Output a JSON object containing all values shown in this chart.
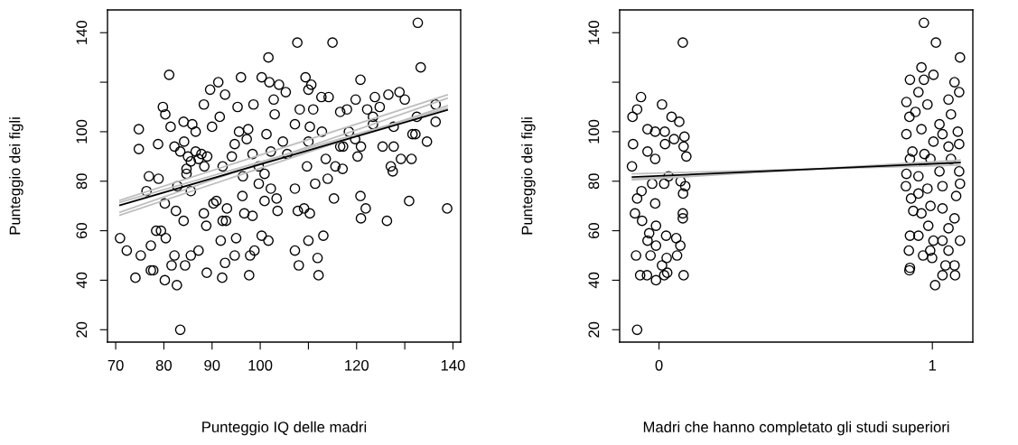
{
  "chart_data": [
    {
      "type": "scatter",
      "xlabel": "Punteggio IQ delle madri",
      "ylabel": "Punteggio dei figli",
      "xlim": [
        68.3,
        141.6
      ],
      "ylim": [
        15,
        149.2
      ],
      "xticks": [
        70,
        80,
        90,
        100,
        {
          "value": 110,
          "label": null
        },
        120,
        {
          "value": 130,
          "label": null
        },
        140
      ],
      "yticks": [
        20,
        40,
        60,
        80,
        100,
        {
          "value": 120,
          "label": null
        },
        140
      ],
      "grid": false,
      "legend": false,
      "series": [
        {
          "marker": "circle",
          "color": "#000000",
          "x": [
            70.9,
            72.3,
            74.1,
            74.8,
            74.8,
            75.2,
            76.4,
            76.9,
            77.3,
            77.3,
            78.8,
            78.9,
            79.8,
            80.3,
            81.1,
            81.4,
            80.2,
            79.4,
            80.4,
            80.2,
            82.7,
            83.4,
            82.2,
            82.5,
            84.1,
            85.9,
            84.2,
            84.7,
            85.6,
            86.6,
            87.2,
            88.9,
            88.3,
            88.8,
            88.3,
            89.6,
            91.3,
            90,
            87.8,
            90.3,
            92.1,
            91.8,
            92.7,
            92.7,
            93.1,
            92.9,
            91.6,
            94.1,
            96,
            94.7,
            95,
            95.3,
            95.6,
            96.4,
            96.3,
            96.7,
            97.7,
            97.9,
            98.8,
            98.6,
            97.5,
            98.4,
            99.7,
            100.3,
            101.9,
            101.7,
            100.3,
            101.7,
            100.9,
            102.2,
            101.3,
            103.4,
            103.6,
            103.9,
            102.8,
            103,
            105.3,
            104.7,
            105.6,
            107.2,
            108,
            107.7,
            107.8,
            107.2,
            108.2,
            107.2,
            109.4,
            110.6,
            110,
            110,
            109.7,
            109.1,
            110.3,
            110,
            111.9,
            112.1,
            113.1,
            111.4,
            111,
            115,
            112.7,
            114.2,
            113.6,
            114,
            115.3,
            115.6,
            117.1,
            116.6,
            118,
            116.6,
            118.4,
            119.8,
            120.8,
            120.8,
            120.9,
            121.9,
            120.2,
            120.9,
            122.2,
            123.8,
            123.4,
            124.8,
            125.4,
            126.3,
            126.6,
            127.1,
            127.5,
            127.7,
            128.9,
            129.2,
            130,
            127.7,
            130.9,
            131.4,
            131.6,
            132.2,
            132.7,
            133.3,
            134.6,
            136.4,
            136.4,
            138.8,
            132.5,
            82.2,
            83.4,
            85,
            86.6,
            87.2,
            88.4,
            89,
            84.7,
            82.8,
            85.6,
            90.9,
            92.2,
            94.7,
            97.2,
            99.7,
            102.2,
            100.9,
            84.1,
            78.4,
            77.8,
            81.6,
            84.4,
            85.6,
            92.2,
            98.4,
            110.3,
            112.8,
            119.7,
            123.4,
            117.2
          ],
          "values": [
            57,
            52,
            41,
            101,
            93,
            50,
            76,
            82,
            54,
            44,
            95,
            81,
            110,
            107,
            123,
            102,
            71,
            60,
            57,
            40,
            38,
            20,
            50,
            68,
            104,
            103,
            96,
            85,
            88,
            100,
            52,
            43,
            67,
            62,
            111,
            117,
            120,
            102,
            91,
            71,
            41,
            56,
            47,
            115,
            69,
            64,
            106,
            90,
            122,
            50,
            57,
            110,
            100,
            82,
            74,
            67,
            42,
            50,
            52,
            111,
            101,
            91,
            79,
            122,
            120,
            130,
            58,
            56,
            72,
            77,
            99,
            73,
            68,
            119,
            113,
            107,
            116,
            96,
            91,
            52,
            46,
            136,
            68,
            77,
            109,
            103,
            122,
            119,
            117,
            96,
            86,
            69,
            67,
            56,
            49,
            42,
            58,
            79,
            109,
            136,
            114,
            114,
            89,
            81,
            73,
            86,
            85,
            108,
            109,
            94,
            100,
            113,
            121,
            74,
            65,
            69,
            90,
            94,
            109,
            114,
            106,
            110,
            94,
            64,
            115,
            86,
            84,
            94,
            116,
            89,
            113,
            102,
            72,
            89,
            99,
            99,
            144,
            126,
            96,
            111,
            104,
            69,
            106,
            94,
            92,
            90,
            92,
            89,
            86,
            90,
            83,
            78,
            76,
            72,
            86,
            95,
            97,
            86,
            92,
            83,
            64,
            60,
            44,
            46,
            46,
            50,
            64,
            66,
            102,
            100,
            97,
            103,
            94
          ]
        },
        {
          "type": "line",
          "color": "#bebebe",
          "x": [
            70.9,
            138.8
          ],
          "values": [
            72.3,
            114.9
          ]
        },
        {
          "type": "line",
          "color": "#bebebe",
          "x": [
            70.9,
            138.8
          ],
          "values": [
            66.3,
            110.5
          ]
        },
        {
          "type": "line",
          "color": "#bebebe",
          "x": [
            70.9,
            138.8
          ],
          "values": [
            67.5,
            113.5
          ]
        },
        {
          "type": "line",
          "color": "#bebebe",
          "x": [
            70.9,
            138.8
          ],
          "values": [
            71.5,
            109.5
          ]
        },
        {
          "type": "line",
          "color": "#000000",
          "x": [
            70.9,
            138.8
          ],
          "values": [
            70.3,
            108.8
          ]
        }
      ]
    },
    {
      "type": "scatter",
      "xlabel": "Madri che hanno completato gli studi superiori",
      "ylabel": "Punteggio dei figli",
      "xlim": [
        -0.144,
        1.148
      ],
      "ylim": [
        15,
        149.2
      ],
      "xticks": [
        0,
        1
      ],
      "yticks": [
        20,
        40,
        60,
        80,
        100,
        {
          "value": 120,
          "label": null
        },
        140
      ],
      "grid": false,
      "legend": false,
      "series": [
        {
          "marker": "circle",
          "color": "#000000",
          "x": [
            -0.08,
            0.087,
            -0.066,
            0.011,
            -0.097,
            -0.08,
            -0.095,
            -0.099,
            -0.042,
            -0.014,
            -0.042,
            -0.014,
            0.021,
            0.046,
            0.074,
            0.022,
            0.055,
            0.093,
            0.1,
            0.09,
            -0.08,
            -0.064,
            -0.014,
            -0.025,
            0.019,
            0.035,
            0.079,
            0.088,
            0.096,
            0.087,
            0.087,
            -0.088,
            -0.062,
            -0.011,
            -0.036,
            -0.042,
            -0.011,
            0.026,
            0.063,
            0.078,
            0.066,
            0.028,
            -0.084,
            -0.031,
            -0.069,
            -0.044,
            -0.011,
            0.019,
            0.03,
            0.011,
            0.09,
            0.969,
            1.013,
            1.101,
            0.96,
            0.918,
            0.969,
            1.004,
            1.081,
            1.098,
            0.905,
            0.949,
            0.982,
            1.059,
            0.916,
            0.96,
            1.026,
            1.093,
            0.905,
            1.004,
            1.059,
            0.927,
            1.098,
            0.971,
            0.905,
            0.949,
            1.026,
            1.098,
            0.903,
            0.982,
            1.087,
            0.922,
            0.993,
            0.93,
            1.037,
            1.081,
            0.96,
            0.985,
            1.059,
            1.101,
            0.918,
            0.949,
            1.004,
            1.037,
            0.914,
            0.992,
            0.966,
            0.999,
            1.059,
            1.048,
            1.081,
            0.918,
            0.916,
            1.037,
            1.083,
            1.01,
            0.938,
            1.068,
            1.037,
            0.918,
            1.068,
            0.993,
            1.101,
            0.949,
            1.037
          ],
          "values": [
            20,
            136,
            114,
            111,
            106,
            109,
            95,
            86,
            92,
            89,
            101,
            100,
            100,
            106,
            104,
            95,
            97,
            98,
            90,
            94,
            73,
            76,
            71,
            79,
            79,
            82,
            80,
            75,
            78,
            67,
            65,
            67,
            64,
            62,
            59,
            56,
            54,
            58,
            57,
            54,
            50,
            49,
            50,
            50,
            42,
            42,
            40,
            42,
            43,
            46,
            42,
            144,
            136,
            130,
            126,
            121,
            121,
            123,
            120,
            116,
            112,
            116,
            111,
            113,
            106,
            101,
            103,
            100,
            99,
            96,
            94,
            92,
            95,
            91,
            83,
            82,
            84,
            84,
            78,
            77,
            74,
            73,
            70,
            68,
            69,
            65,
            67,
            62,
            61,
            56,
            58,
            58,
            56,
            56,
            52,
            52,
            50,
            49,
            52,
            46,
            46,
            45,
            44,
            42,
            42,
            38,
            108,
            107,
            99,
            89,
            89,
            89,
            79,
            75,
            78
          ]
        },
        {
          "type": "line",
          "color": "#bebebe",
          "x": [
            -0.097,
            1.101
          ],
          "values": [
            80.5,
            88.5
          ]
        },
        {
          "type": "line",
          "color": "#bebebe",
          "x": [
            -0.097,
            1.101
          ],
          "values": [
            83,
            86.5
          ]
        },
        {
          "type": "line",
          "color": "#bebebe",
          "x": [
            -0.097,
            1.101
          ],
          "values": [
            81,
            87.8
          ]
        },
        {
          "type": "line",
          "color": "#000000",
          "x": [
            -0.097,
            1.101
          ],
          "values": [
            81.7,
            87.5
          ]
        }
      ]
    }
  ]
}
